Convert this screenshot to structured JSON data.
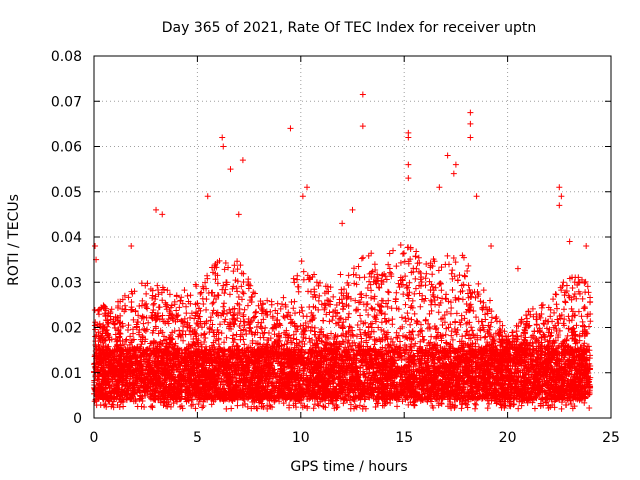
{
  "chart_data": {
    "type": "scatter",
    "title": "Day 365 of 2021, Rate Of TEC Index for receiver uptn",
    "xlabel": "GPS time / hours",
    "ylabel": "ROTI / TECUs",
    "xlim": [
      0,
      25
    ],
    "ylim": [
      0,
      0.08
    ],
    "xticks": [
      0,
      5,
      10,
      15,
      20,
      25
    ],
    "xtick_labels": [
      "0",
      "5",
      "10",
      "15",
      "20",
      "25"
    ],
    "yticks": [
      0,
      0.01,
      0.02,
      0.03,
      0.04,
      0.05,
      0.06,
      0.07,
      0.08
    ],
    "ytick_labels": [
      "0",
      "0.01",
      "0.02",
      "0.03",
      "0.04",
      "0.05",
      "0.06",
      "0.07",
      "0.08"
    ],
    "grid": true,
    "marker": "+",
    "color": "#ff0000",
    "series": [
      {
        "name": "ROTI",
        "x_range": [
          0,
          24
        ],
        "baseline_band": [
          0.004,
          0.015
        ],
        "notable_points": [
          {
            "x": 0.05,
            "y": 0.038
          },
          {
            "x": 0.1,
            "y": 0.035
          },
          {
            "x": 1.8,
            "y": 0.038
          },
          {
            "x": 3.0,
            "y": 0.046
          },
          {
            "x": 3.3,
            "y": 0.045
          },
          {
            "x": 5.5,
            "y": 0.049
          },
          {
            "x": 6.2,
            "y": 0.062
          },
          {
            "x": 6.25,
            "y": 0.06
          },
          {
            "x": 6.6,
            "y": 0.055
          },
          {
            "x": 7.2,
            "y": 0.057
          },
          {
            "x": 7.0,
            "y": 0.045
          },
          {
            "x": 9.5,
            "y": 0.064
          },
          {
            "x": 10.3,
            "y": 0.051
          },
          {
            "x": 10.1,
            "y": 0.049
          },
          {
            "x": 12.0,
            "y": 0.043
          },
          {
            "x": 12.5,
            "y": 0.046
          },
          {
            "x": 13.0,
            "y": 0.0715
          },
          {
            "x": 13.0,
            "y": 0.0645
          },
          {
            "x": 15.2,
            "y": 0.063
          },
          {
            "x": 15.2,
            "y": 0.062
          },
          {
            "x": 15.2,
            "y": 0.056
          },
          {
            "x": 15.2,
            "y": 0.053
          },
          {
            "x": 16.7,
            "y": 0.051
          },
          {
            "x": 17.1,
            "y": 0.058
          },
          {
            "x": 17.5,
            "y": 0.056
          },
          {
            "x": 17.4,
            "y": 0.054
          },
          {
            "x": 18.2,
            "y": 0.0675
          },
          {
            "x": 18.2,
            "y": 0.065
          },
          {
            "x": 18.2,
            "y": 0.062
          },
          {
            "x": 18.5,
            "y": 0.049
          },
          {
            "x": 19.2,
            "y": 0.038
          },
          {
            "x": 20.5,
            "y": 0.033
          },
          {
            "x": 22.5,
            "y": 0.051
          },
          {
            "x": 22.6,
            "y": 0.049
          },
          {
            "x": 22.5,
            "y": 0.047
          },
          {
            "x": 23.0,
            "y": 0.039
          },
          {
            "x": 23.8,
            "y": 0.038
          }
        ],
        "activity_envelope": [
          {
            "x": 0,
            "y": 0.025
          },
          {
            "x": 1,
            "y": 0.025
          },
          {
            "x": 2,
            "y": 0.03
          },
          {
            "x": 3,
            "y": 0.03
          },
          {
            "x": 4,
            "y": 0.028
          },
          {
            "x": 5,
            "y": 0.03
          },
          {
            "x": 6,
            "y": 0.035
          },
          {
            "x": 7,
            "y": 0.035
          },
          {
            "x": 8,
            "y": 0.026
          },
          {
            "x": 9,
            "y": 0.026
          },
          {
            "x": 10,
            "y": 0.035
          },
          {
            "x": 11,
            "y": 0.03
          },
          {
            "x": 12,
            "y": 0.032
          },
          {
            "x": 13,
            "y": 0.038
          },
          {
            "x": 14,
            "y": 0.035
          },
          {
            "x": 15,
            "y": 0.04
          },
          {
            "x": 16,
            "y": 0.035
          },
          {
            "x": 17,
            "y": 0.036
          },
          {
            "x": 18,
            "y": 0.036
          },
          {
            "x": 19,
            "y": 0.028
          },
          {
            "x": 20,
            "y": 0.018
          },
          {
            "x": 21,
            "y": 0.024
          },
          {
            "x": 22,
            "y": 0.026
          },
          {
            "x": 23,
            "y": 0.032
          },
          {
            "x": 24,
            "y": 0.03
          }
        ]
      }
    ]
  }
}
